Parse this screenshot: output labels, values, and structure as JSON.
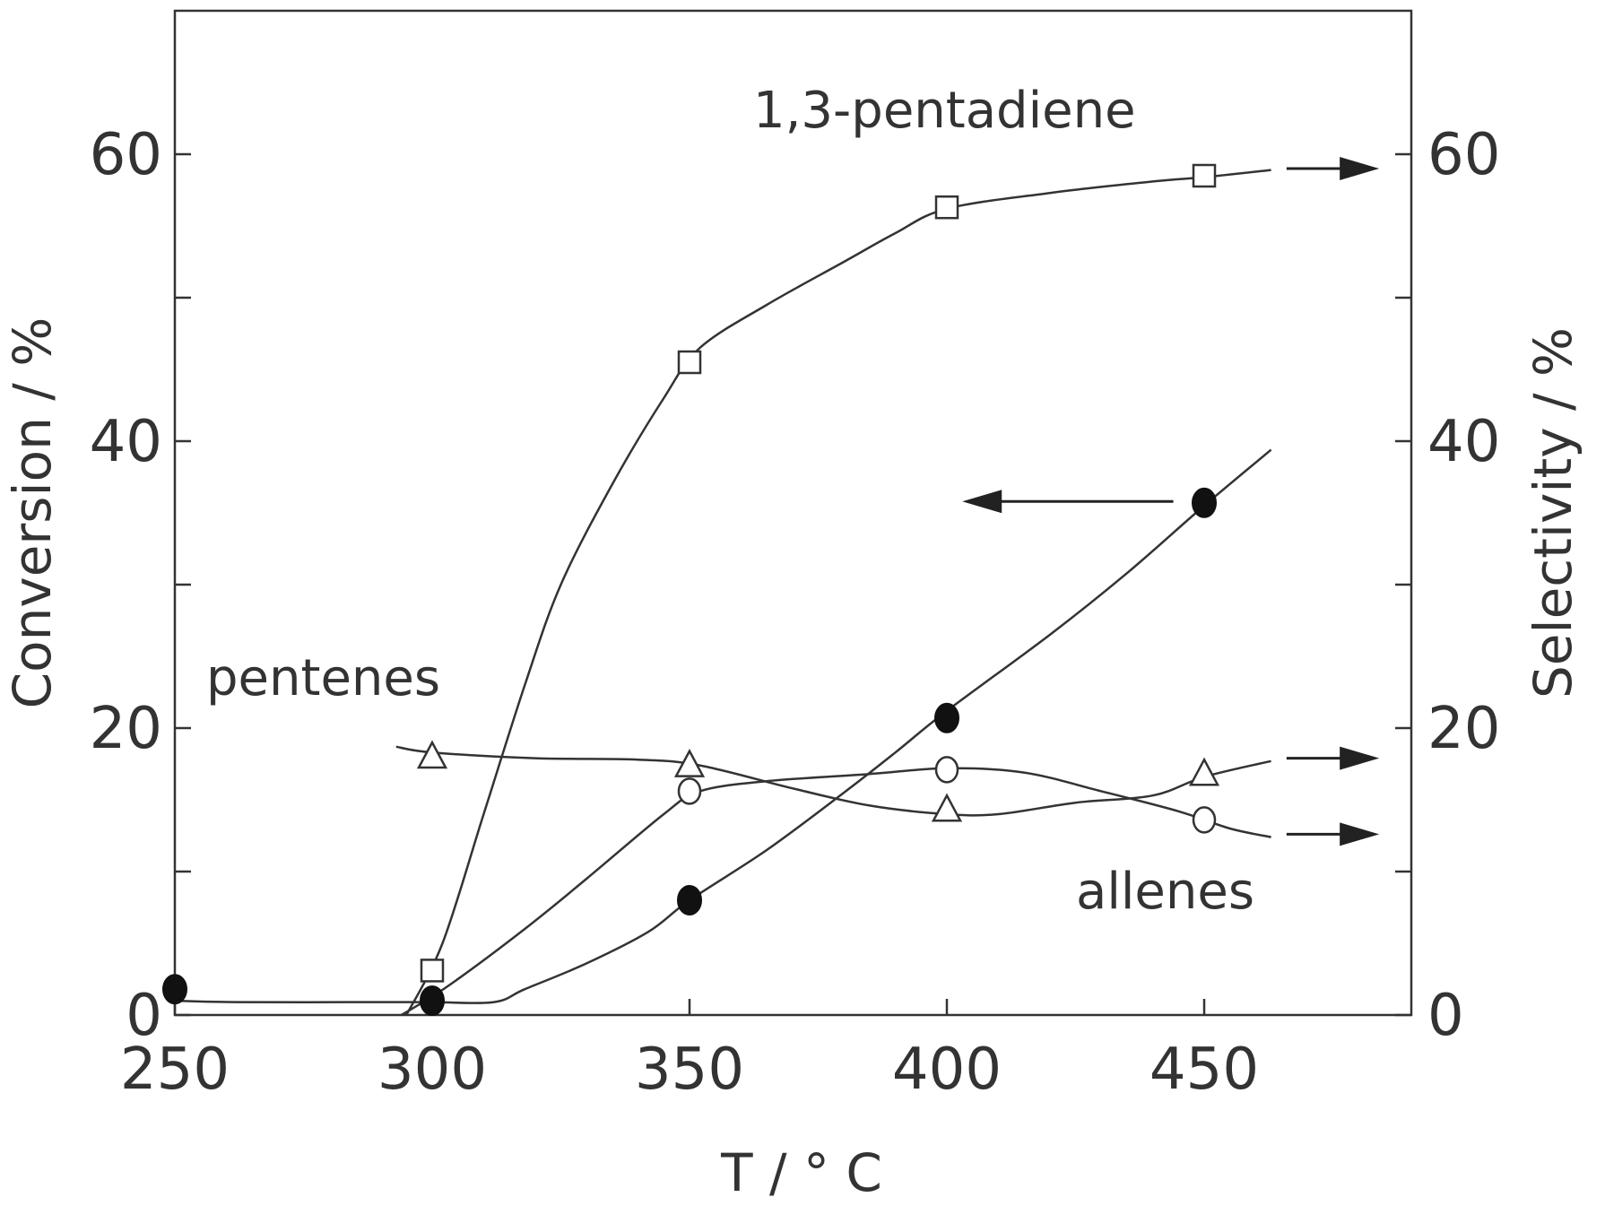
{
  "chart_data": {
    "type": "line",
    "title": "",
    "xlabel": "T / ° C",
    "ylabel_left": "Conversion / %",
    "ylabel_right": "Selectivity / %",
    "xlim": [
      250,
      490
    ],
    "ylim_left": [
      0,
      70
    ],
    "ylim_right": [
      0,
      70
    ],
    "x_ticks": [
      250,
      300,
      350,
      400,
      450
    ],
    "y_ticks": [
      0,
      20,
      40,
      60
    ],
    "x_tick_labels": [
      "250",
      "300",
      "350",
      "400",
      "450"
    ],
    "y_left_tick_labels": [
      "0",
      "20",
      "40",
      "60"
    ],
    "y_right_tick_labels": [
      "0",
      "20",
      "40",
      "60"
    ],
    "grid": false,
    "colors": {
      "ink": "#333333",
      "background": "#ffffff"
    },
    "series": [
      {
        "label_text": "",
        "axis": "left",
        "marker": "filled-circle",
        "x": [
          250,
          300,
          350,
          400,
          450
        ],
        "y": [
          1.8,
          1.0,
          8.0,
          20.7,
          35.7
        ]
      },
      {
        "label_text": "1,3-pentadiene",
        "axis": "right",
        "marker": "open-square",
        "x": [
          300,
          350,
          400,
          450
        ],
        "y": [
          3.1,
          45.5,
          56.3,
          58.5
        ]
      },
      {
        "label_text": "pentenes",
        "axis": "right",
        "marker": "open-triangle",
        "x": [
          300,
          350,
          400,
          450
        ],
        "y": [
          18.0,
          17.4,
          14.3,
          16.8
        ]
      },
      {
        "label_text": "allenes",
        "axis": "right",
        "marker": "open-circle",
        "x": [
          350,
          400,
          450
        ],
        "y": [
          15.6,
          17.1,
          13.6
        ]
      }
    ],
    "curves": {
      "conversion": [
        [
          250,
          1.0
        ],
        [
          262,
          0.9
        ],
        [
          290,
          0.9
        ],
        [
          300,
          0.9
        ],
        [
          312,
          0.9
        ],
        [
          318,
          1.8
        ],
        [
          330,
          3.6
        ],
        [
          342,
          5.8
        ],
        [
          350,
          8.0
        ],
        [
          365,
          11.5
        ],
        [
          380,
          15.5
        ],
        [
          390,
          18.3
        ],
        [
          400,
          21.2
        ],
        [
          420,
          26.5
        ],
        [
          435,
          30.8
        ],
        [
          450,
          35.5
        ],
        [
          463,
          39.4
        ]
      ],
      "pentadiene": [
        [
          295,
          0.0
        ],
        [
          302,
          5.0
        ],
        [
          310,
          14.0
        ],
        [
          318,
          23.0
        ],
        [
          325,
          30.0
        ],
        [
          335,
          37.0
        ],
        [
          345,
          43.0
        ],
        [
          352,
          46.5
        ],
        [
          365,
          49.5
        ],
        [
          380,
          52.5
        ],
        [
          390,
          54.5
        ],
        [
          400,
          56.2
        ],
        [
          420,
          57.3
        ],
        [
          440,
          58.1
        ],
        [
          450,
          58.4
        ],
        [
          463,
          58.9
        ]
      ],
      "pentenes": [
        [
          293,
          18.7
        ],
        [
          300,
          18.3
        ],
        [
          320,
          17.9
        ],
        [
          340,
          17.8
        ],
        [
          352,
          17.4
        ],
        [
          370,
          15.8
        ],
        [
          385,
          14.6
        ],
        [
          400,
          14.0
        ],
        [
          410,
          14.0
        ],
        [
          425,
          14.8
        ],
        [
          440,
          15.3
        ],
        [
          450,
          16.6
        ],
        [
          463,
          17.7
        ]
      ],
      "allenes": [
        [
          294,
          0.0
        ],
        [
          303,
          2.0
        ],
        [
          318,
          6.0
        ],
        [
          330,
          9.5
        ],
        [
          345,
          14.0
        ],
        [
          352,
          15.6
        ],
        [
          365,
          16.3
        ],
        [
          385,
          16.8
        ],
        [
          400,
          17.2
        ],
        [
          415,
          16.9
        ],
        [
          430,
          15.6
        ],
        [
          445,
          14.2
        ],
        [
          455,
          13.0
        ],
        [
          463,
          12.4
        ]
      ]
    },
    "annotations": {
      "pentadiene_label": "1,3-pentadiene",
      "pentenes_label": "pentenes",
      "allenes_label": "allenes"
    },
    "arrows": [
      {
        "direction": "left",
        "from": [
          444,
          35.8
        ],
        "to": [
          403,
          35.8
        ]
      },
      {
        "direction": "right",
        "from": [
          466,
          59.0
        ],
        "to": [
          484,
          59.0
        ]
      },
      {
        "direction": "right",
        "from": [
          466,
          17.9
        ],
        "to": [
          484,
          17.9
        ]
      },
      {
        "direction": "right",
        "from": [
          466,
          12.6
        ],
        "to": [
          484,
          12.6
        ]
      }
    ]
  }
}
